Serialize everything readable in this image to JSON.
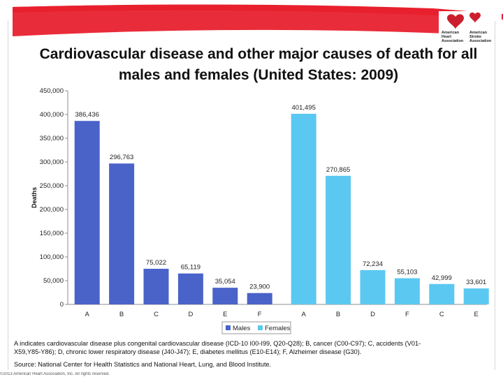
{
  "title_line1": "Cardiovascular disease and other major causes of death for all",
  "title_line2": "males and females (United States: 2009)",
  "logo": {
    "left_lines": [
      "American",
      "Heart",
      "Association"
    ],
    "right_lines": [
      "American",
      "Stroke",
      "Association"
    ],
    "heart_color": "#cc1f2d"
  },
  "colors": {
    "banner": "#e8212e",
    "males": "#4a63c9",
    "females": "#5bc8f2",
    "axis": "#8c8c8c"
  },
  "chart_data": {
    "type": "bar",
    "ylabel": "Deaths",
    "ylim": [
      0,
      450000
    ],
    "yticks": [
      "0",
      "50,000",
      "100,000",
      "150,000",
      "200,000",
      "250,000",
      "300,000",
      "350,000",
      "400,000",
      "450,000"
    ],
    "legend": {
      "position": "bottom-center",
      "entries": [
        "Males",
        "Females"
      ]
    },
    "series": [
      {
        "name": "Males",
        "categories": [
          "A",
          "B",
          "C",
          "D",
          "E",
          "F"
        ],
        "values": [
          386436,
          296763,
          75022,
          65119,
          35054,
          23900
        ],
        "labels": [
          "386,436",
          "296,763",
          "75,022",
          "65,119",
          "35,054",
          "23,900"
        ]
      },
      {
        "name": "Females",
        "categories": [
          "A",
          "B",
          "D",
          "F",
          "C",
          "E"
        ],
        "values": [
          401495,
          270865,
          72234,
          55103,
          42999,
          33601
        ],
        "labels": [
          "401,495",
          "270,865",
          "72,234",
          "55,103",
          "42,999",
          "33,601"
        ]
      }
    ]
  },
  "footnote_line1": "A indicates cardiovascular disease plus congenital cardiovascular disease (ICD-10 I00-I99, Q20-Q28); B, cancer (C00-C97); C, accidents (V01-",
  "footnote_line2": "X59,Y85-Y86); D, chronic lower respiratory disease (J40-J47); E, diabetes mellitus (E10-E14); F, Alzheimer disease (G30).",
  "source": "Source: National Center for Health Statistics and National Heart, Lung, and Blood Institute.",
  "bottom_strip": "©2013 American Heart Association, Inc. All rights reserved."
}
